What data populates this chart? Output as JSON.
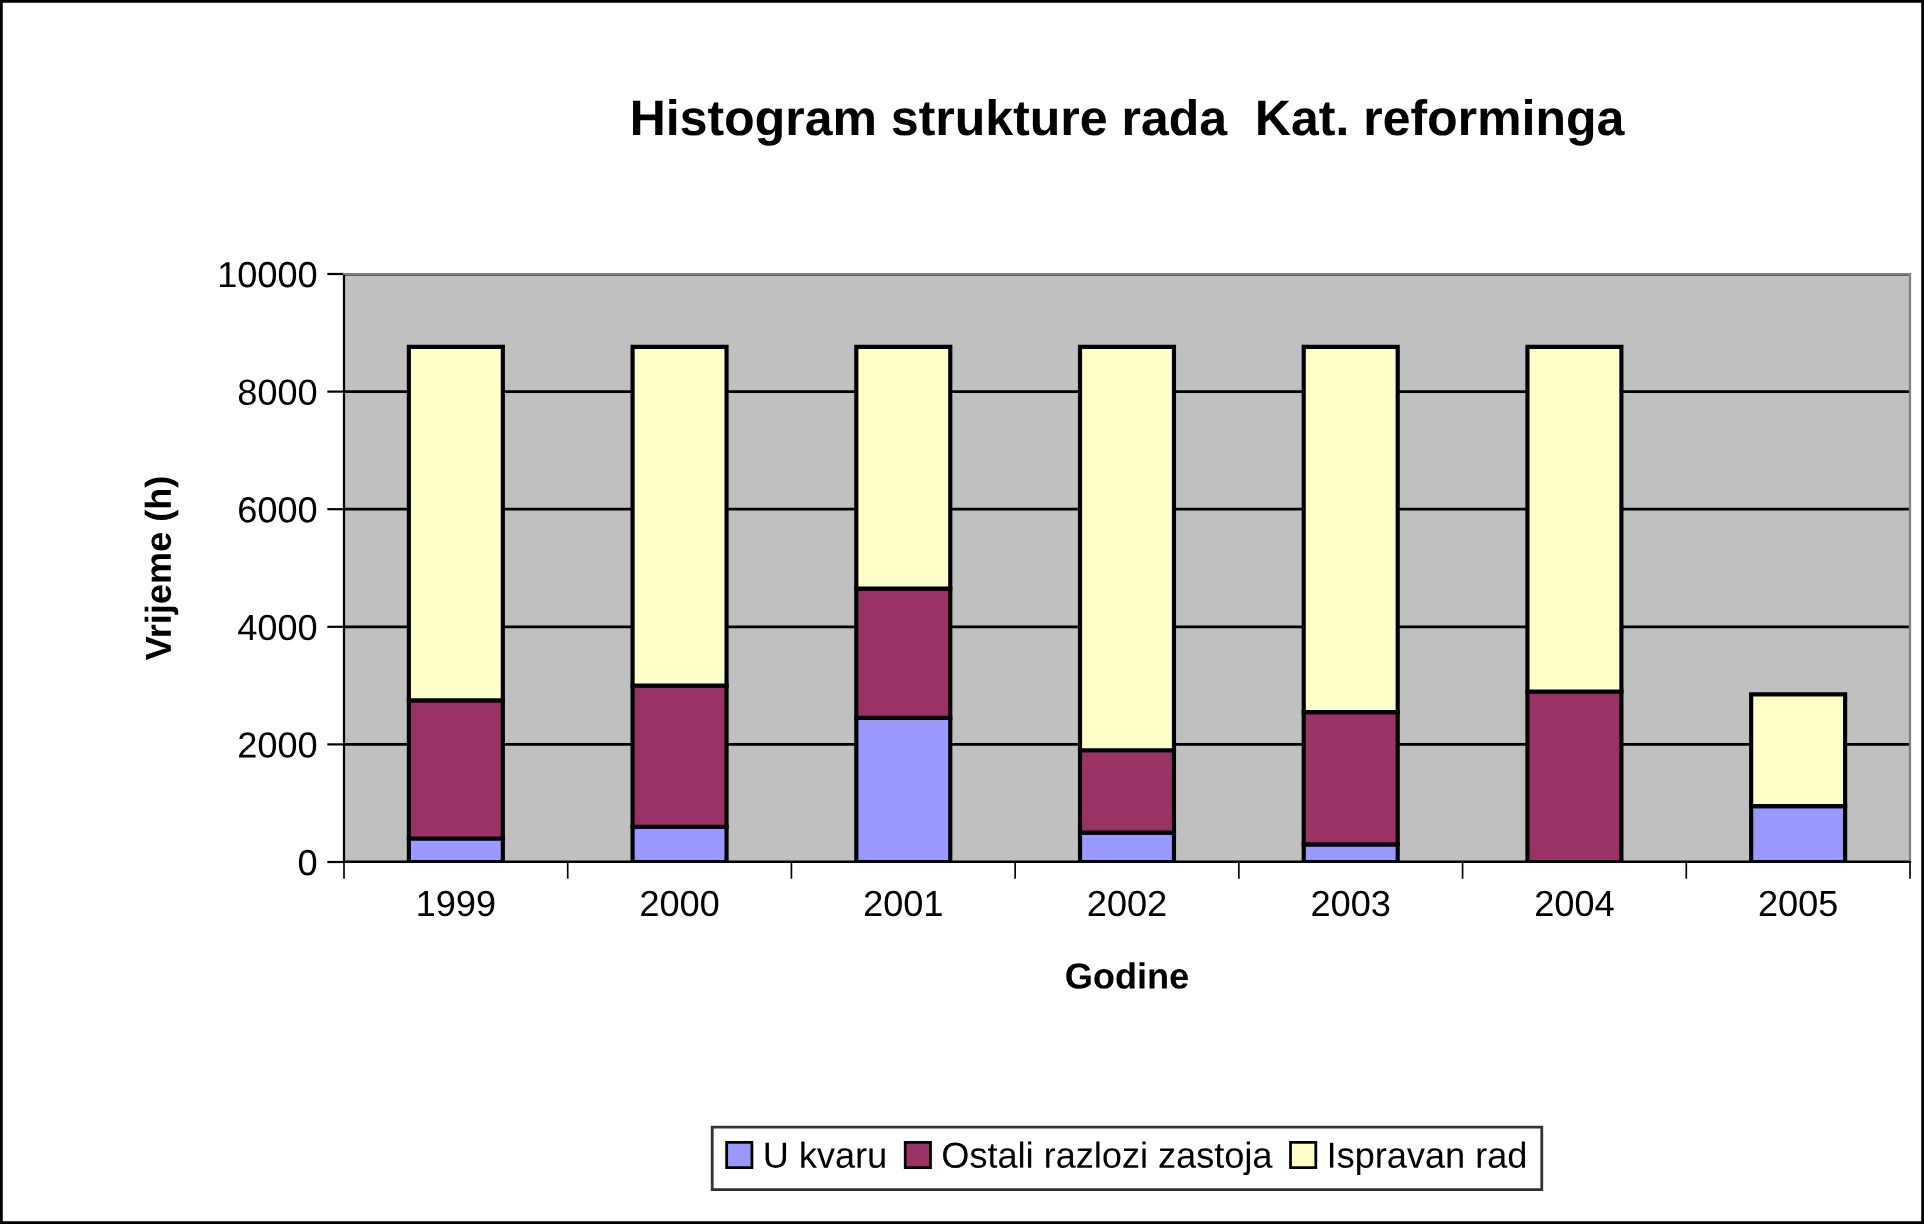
{
  "chart_data": {
    "type": "bar",
    "stacked": true,
    "title": "Histogram strukture rada  Kat. reforminga",
    "xlabel": "Godine",
    "ylabel": "Vrijeme (h)",
    "categories": [
      "1999",
      "2000",
      "2001",
      "2002",
      "2003",
      "2004",
      "2005"
    ],
    "series": [
      {
        "name": "U kvaru",
        "color": "#9999ff",
        "values": [
          400,
          600,
          2450,
          500,
          300,
          0,
          950
        ]
      },
      {
        "name": "Ostali razlozi zastoja",
        "color": "#993366",
        "values": [
          2350,
          2400,
          2200,
          1400,
          2250,
          2900,
          null
        ]
      },
      {
        "name": "Ispravan rad",
        "color": "#ffffcc",
        "values": [
          6010,
          5760,
          4110,
          6860,
          6210,
          5860,
          1900
        ]
      }
    ],
    "ylim": [
      0,
      10000
    ],
    "yticks": [
      0,
      2000,
      4000,
      6000,
      8000,
      10000
    ],
    "grid": "y",
    "legend": "bottom"
  }
}
